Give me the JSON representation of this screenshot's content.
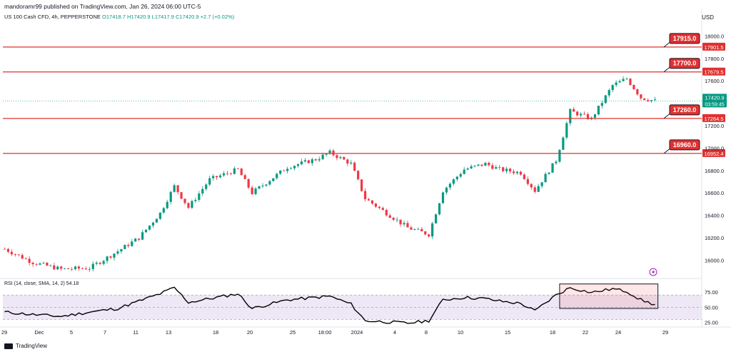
{
  "header": {
    "credit": "mandoramr99 published on TradingView.com, Jan 26, 2024 06:00 UTC-5",
    "symbol": "US 100 Cash CFD, 4h, PEPPERSTONE",
    "ohlc": "O17418.7  H17420.9  L17417.9  C17420.9  +2.7 (+0.02%)",
    "currency": "USD"
  },
  "rsi_legend": "RSI (14, close, SMA, 14, 2)  54.18",
  "footer_brand": "TradingView",
  "colors": {
    "up": "#089981",
    "down": "#f23645",
    "rsi": "#000000",
    "level": "#e03131",
    "rsi_band": "#ede7f6"
  },
  "chart_data": [
    {
      "type": "candlestick",
      "title": "US 100 Cash CFD, 4h, PEPPERSTONE",
      "y_axis_ticks": [
        "18000.0",
        "17800.0",
        "17600.0",
        "17200.0",
        "17000.0",
        "16800.0",
        "16600.0",
        "16400.0",
        "16200.0",
        "16000.0"
      ],
      "x_axis_ticks": [
        "29",
        "Dec",
        "5",
        "7",
        "11",
        "13",
        "18",
        "20",
        "25",
        "18:00",
        "2024",
        "4",
        "8",
        "10",
        "15",
        "18",
        "22",
        "24",
        "29"
      ],
      "ylim": [
        15850,
        18130
      ],
      "current_price": {
        "value": "17420.9",
        "countdown": "03:59:45"
      },
      "levels": [
        {
          "value": 17901.5,
          "axis_label": "17901.5",
          "callout": "17915.0"
        },
        {
          "value": 17679.5,
          "axis_label": "17679.5",
          "callout": "17700.0"
        },
        {
          "value": 17264.5,
          "axis_label": "17264.5",
          "callout": "17260.0"
        },
        {
          "value": 16952.4,
          "axis_label": "16952.4",
          "callout": "16960.0"
        }
      ],
      "close_path": [
        {
          "i": 0,
          "close": 16100
        },
        {
          "i": 8,
          "close": 15980
        },
        {
          "i": 16,
          "close": 15920
        },
        {
          "i": 24,
          "close": 15930
        },
        {
          "i": 32,
          "close": 16080
        },
        {
          "i": 38,
          "close": 16200
        },
        {
          "i": 44,
          "close": 16420
        },
        {
          "i": 48,
          "close": 16660
        },
        {
          "i": 52,
          "close": 16470
        },
        {
          "i": 58,
          "close": 16720
        },
        {
          "i": 66,
          "close": 16810
        },
        {
          "i": 70,
          "close": 16600
        },
        {
          "i": 80,
          "close": 16830
        },
        {
          "i": 88,
          "close": 16900
        },
        {
          "i": 92,
          "close": 16960
        },
        {
          "i": 98,
          "close": 16860
        },
        {
          "i": 102,
          "close": 16550
        },
        {
          "i": 108,
          "close": 16420
        },
        {
          "i": 114,
          "close": 16290
        },
        {
          "i": 120,
          "close": 16230
        },
        {
          "i": 124,
          "close": 16620
        },
        {
          "i": 130,
          "close": 16810
        },
        {
          "i": 136,
          "close": 16860
        },
        {
          "i": 140,
          "close": 16810
        },
        {
          "i": 146,
          "close": 16780
        },
        {
          "i": 150,
          "close": 16620
        },
        {
          "i": 156,
          "close": 16890
        },
        {
          "i": 160,
          "close": 17330
        },
        {
          "i": 166,
          "close": 17260
        },
        {
          "i": 172,
          "close": 17560
        },
        {
          "i": 176,
          "close": 17620
        },
        {
          "i": 180,
          "close": 17450
        },
        {
          "i": 184,
          "close": 17420
        }
      ]
    },
    {
      "type": "line",
      "title": "RSI (14, close, SMA, 14, 2)",
      "y_axis_ticks": [
        "75.00",
        "50.00",
        "25.00"
      ],
      "ylim": [
        20,
        90
      ],
      "bands": [
        70,
        50,
        30
      ],
      "value": 54.18,
      "series": [
        {
          "i": 0,
          "v": 42
        },
        {
          "i": 8,
          "v": 38
        },
        {
          "i": 16,
          "v": 35
        },
        {
          "i": 24,
          "v": 42
        },
        {
          "i": 32,
          "v": 48
        },
        {
          "i": 38,
          "v": 60
        },
        {
          "i": 44,
          "v": 72
        },
        {
          "i": 48,
          "v": 82
        },
        {
          "i": 52,
          "v": 58
        },
        {
          "i": 58,
          "v": 64
        },
        {
          "i": 66,
          "v": 72
        },
        {
          "i": 70,
          "v": 48
        },
        {
          "i": 80,
          "v": 62
        },
        {
          "i": 88,
          "v": 66
        },
        {
          "i": 92,
          "v": 68
        },
        {
          "i": 98,
          "v": 55
        },
        {
          "i": 102,
          "v": 28
        },
        {
          "i": 108,
          "v": 26
        },
        {
          "i": 114,
          "v": 24
        },
        {
          "i": 120,
          "v": 28
        },
        {
          "i": 124,
          "v": 62
        },
        {
          "i": 130,
          "v": 66
        },
        {
          "i": 136,
          "v": 64
        },
        {
          "i": 140,
          "v": 60
        },
        {
          "i": 146,
          "v": 56
        },
        {
          "i": 150,
          "v": 44
        },
        {
          "i": 156,
          "v": 70
        },
        {
          "i": 160,
          "v": 82
        },
        {
          "i": 166,
          "v": 74
        },
        {
          "i": 172,
          "v": 80
        },
        {
          "i": 176,
          "v": 76
        },
        {
          "i": 180,
          "v": 62
        },
        {
          "i": 184,
          "v": 54
        }
      ]
    }
  ]
}
